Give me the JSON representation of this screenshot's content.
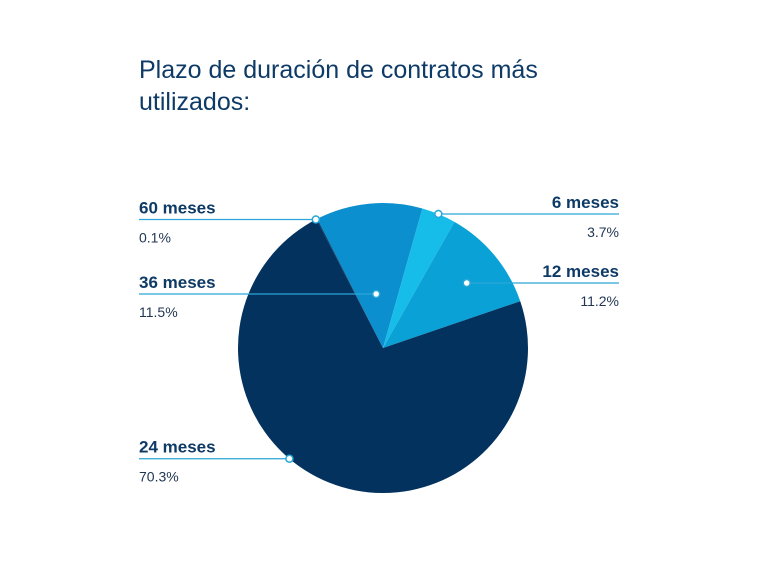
{
  "chart_data": {
    "type": "pie",
    "title": "Plazo de duración de contratos más utilizados:",
    "slices": [
      {
        "name": "36 meses",
        "value": 11.5,
        "label": "11.5%",
        "color": "#0b8fcf"
      },
      {
        "name": "6 meses",
        "value": 3.7,
        "label": "3.7%",
        "color": "#16bde8"
      },
      {
        "name": "12 meses",
        "value": 11.2,
        "label": "11.2%",
        "color": "#0aa2d6"
      },
      {
        "name": "24 meses",
        "value": 70.3,
        "label": "70.3%",
        "color": "#03325e"
      },
      {
        "name": "60 meses",
        "value": 0.1,
        "label": "0.1%",
        "color": "#03325e"
      }
    ],
    "legend": "none",
    "leader_color": "#2aa6d8"
  }
}
